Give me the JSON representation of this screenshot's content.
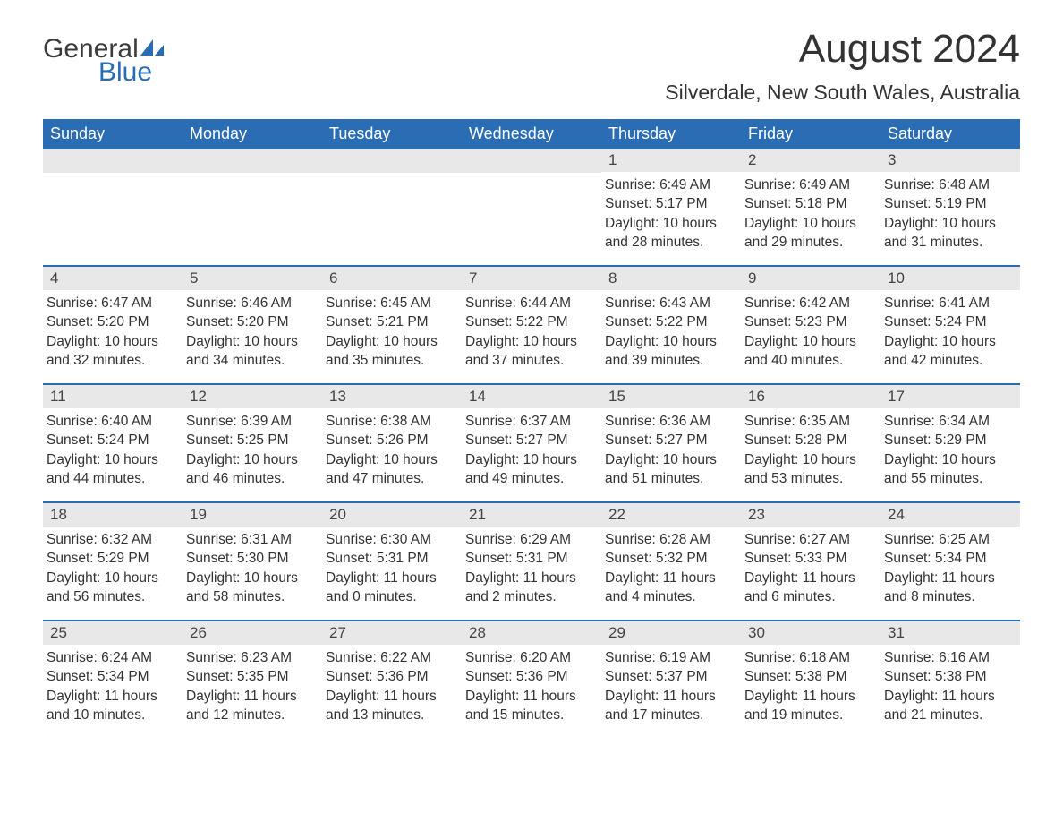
{
  "logo": {
    "text_general": "General",
    "text_blue": "Blue",
    "icon_color": "#2a6db5"
  },
  "header": {
    "month_title": "August 2024",
    "location": "Silverdale, New South Wales, Australia"
  },
  "colors": {
    "header_bg": "#2a6db5",
    "header_text": "#ffffff",
    "day_number_bg": "#e8e8e8",
    "week_border": "#2a6db5",
    "body_text": "#333333"
  },
  "day_names": [
    "Sunday",
    "Monday",
    "Tuesday",
    "Wednesday",
    "Thursday",
    "Friday",
    "Saturday"
  ],
  "weeks": [
    [
      null,
      null,
      null,
      null,
      {
        "day": "1",
        "sunrise": "6:49 AM",
        "sunset": "5:17 PM",
        "daylight": "10 hours and 28 minutes."
      },
      {
        "day": "2",
        "sunrise": "6:49 AM",
        "sunset": "5:18 PM",
        "daylight": "10 hours and 29 minutes."
      },
      {
        "day": "3",
        "sunrise": "6:48 AM",
        "sunset": "5:19 PM",
        "daylight": "10 hours and 31 minutes."
      }
    ],
    [
      {
        "day": "4",
        "sunrise": "6:47 AM",
        "sunset": "5:20 PM",
        "daylight": "10 hours and 32 minutes."
      },
      {
        "day": "5",
        "sunrise": "6:46 AM",
        "sunset": "5:20 PM",
        "daylight": "10 hours and 34 minutes."
      },
      {
        "day": "6",
        "sunrise": "6:45 AM",
        "sunset": "5:21 PM",
        "daylight": "10 hours and 35 minutes."
      },
      {
        "day": "7",
        "sunrise": "6:44 AM",
        "sunset": "5:22 PM",
        "daylight": "10 hours and 37 minutes."
      },
      {
        "day": "8",
        "sunrise": "6:43 AM",
        "sunset": "5:22 PM",
        "daylight": "10 hours and 39 minutes."
      },
      {
        "day": "9",
        "sunrise": "6:42 AM",
        "sunset": "5:23 PM",
        "daylight": "10 hours and 40 minutes."
      },
      {
        "day": "10",
        "sunrise": "6:41 AM",
        "sunset": "5:24 PM",
        "daylight": "10 hours and 42 minutes."
      }
    ],
    [
      {
        "day": "11",
        "sunrise": "6:40 AM",
        "sunset": "5:24 PM",
        "daylight": "10 hours and 44 minutes."
      },
      {
        "day": "12",
        "sunrise": "6:39 AM",
        "sunset": "5:25 PM",
        "daylight": "10 hours and 46 minutes."
      },
      {
        "day": "13",
        "sunrise": "6:38 AM",
        "sunset": "5:26 PM",
        "daylight": "10 hours and 47 minutes."
      },
      {
        "day": "14",
        "sunrise": "6:37 AM",
        "sunset": "5:27 PM",
        "daylight": "10 hours and 49 minutes."
      },
      {
        "day": "15",
        "sunrise": "6:36 AM",
        "sunset": "5:27 PM",
        "daylight": "10 hours and 51 minutes."
      },
      {
        "day": "16",
        "sunrise": "6:35 AM",
        "sunset": "5:28 PM",
        "daylight": "10 hours and 53 minutes."
      },
      {
        "day": "17",
        "sunrise": "6:34 AM",
        "sunset": "5:29 PM",
        "daylight": "10 hours and 55 minutes."
      }
    ],
    [
      {
        "day": "18",
        "sunrise": "6:32 AM",
        "sunset": "5:29 PM",
        "daylight": "10 hours and 56 minutes."
      },
      {
        "day": "19",
        "sunrise": "6:31 AM",
        "sunset": "5:30 PM",
        "daylight": "10 hours and 58 minutes."
      },
      {
        "day": "20",
        "sunrise": "6:30 AM",
        "sunset": "5:31 PM",
        "daylight": "11 hours and 0 minutes."
      },
      {
        "day": "21",
        "sunrise": "6:29 AM",
        "sunset": "5:31 PM",
        "daylight": "11 hours and 2 minutes."
      },
      {
        "day": "22",
        "sunrise": "6:28 AM",
        "sunset": "5:32 PM",
        "daylight": "11 hours and 4 minutes."
      },
      {
        "day": "23",
        "sunrise": "6:27 AM",
        "sunset": "5:33 PM",
        "daylight": "11 hours and 6 minutes."
      },
      {
        "day": "24",
        "sunrise": "6:25 AM",
        "sunset": "5:34 PM",
        "daylight": "11 hours and 8 minutes."
      }
    ],
    [
      {
        "day": "25",
        "sunrise": "6:24 AM",
        "sunset": "5:34 PM",
        "daylight": "11 hours and 10 minutes."
      },
      {
        "day": "26",
        "sunrise": "6:23 AM",
        "sunset": "5:35 PM",
        "daylight": "11 hours and 12 minutes."
      },
      {
        "day": "27",
        "sunrise": "6:22 AM",
        "sunset": "5:36 PM",
        "daylight": "11 hours and 13 minutes."
      },
      {
        "day": "28",
        "sunrise": "6:20 AM",
        "sunset": "5:36 PM",
        "daylight": "11 hours and 15 minutes."
      },
      {
        "day": "29",
        "sunrise": "6:19 AM",
        "sunset": "5:37 PM",
        "daylight": "11 hours and 17 minutes."
      },
      {
        "day": "30",
        "sunrise": "6:18 AM",
        "sunset": "5:38 PM",
        "daylight": "11 hours and 19 minutes."
      },
      {
        "day": "31",
        "sunrise": "6:16 AM",
        "sunset": "5:38 PM",
        "daylight": "11 hours and 21 minutes."
      }
    ]
  ],
  "labels": {
    "sunrise_prefix": "Sunrise: ",
    "sunset_prefix": "Sunset: ",
    "daylight_prefix": "Daylight: "
  }
}
